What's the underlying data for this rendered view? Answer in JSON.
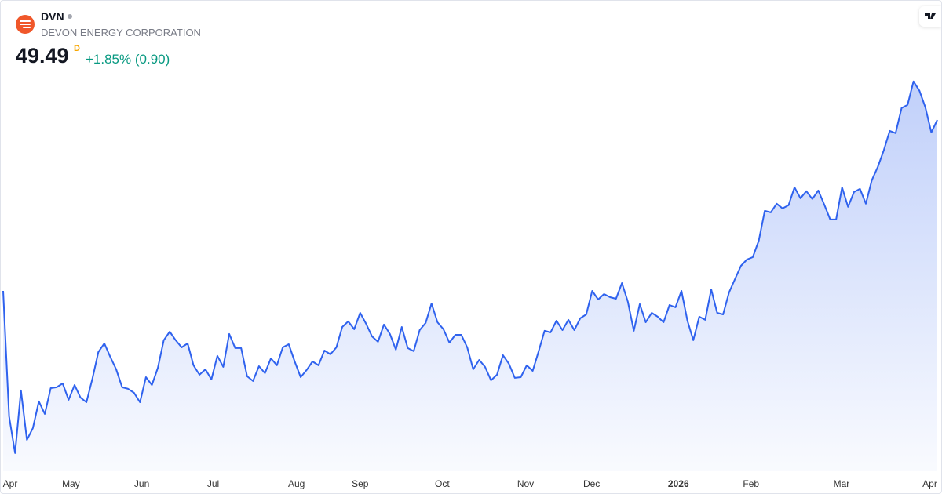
{
  "header": {
    "symbol": "DVN",
    "name": "DEVON ENERGY CORPORATION",
    "price": "49.49",
    "interval": "D",
    "change": "+1.85% (0.90)"
  },
  "chart_data": {
    "type": "area",
    "color": "#2f62ee",
    "values": [
      37.5,
      28.7,
      26.12,
      30.52,
      27.05,
      27.88,
      29.75,
      28.87,
      30.68,
      30.74,
      31.01,
      29.86,
      30.9,
      30.02,
      29.69,
      31.34,
      33.21,
      33.82,
      32.88,
      32.0,
      30.74,
      30.63,
      30.35,
      29.69,
      31.45,
      30.9,
      32.11,
      34.04,
      34.64,
      34.04,
      33.54,
      33.82,
      32.28,
      31.62,
      32.0,
      31.29,
      32.94,
      32.17,
      34.48,
      33.49,
      33.49,
      31.51,
      31.18,
      32.22,
      31.73,
      32.77,
      32.28,
      33.54,
      33.76,
      32.55,
      31.45,
      31.95,
      32.55,
      32.28,
      33.32,
      33.05,
      33.54,
      34.97,
      35.36,
      34.81,
      35.96,
      35.19,
      34.31,
      33.93,
      35.14,
      34.48,
      33.38,
      34.97,
      33.49,
      33.27,
      34.75,
      35.25,
      36.62,
      35.3,
      34.81,
      33.87,
      34.42,
      34.42,
      33.54,
      32.0,
      32.66,
      32.17,
      31.23,
      31.62,
      32.99,
      32.39,
      31.4,
      31.45,
      32.28,
      31.89,
      33.27,
      34.7,
      34.59,
      35.41,
      34.75,
      35.47,
      34.75,
      35.58,
      35.85,
      37.5,
      36.9,
      37.28,
      37.06,
      36.95,
      38.05,
      36.73,
      34.7,
      36.57,
      35.3,
      35.96,
      35.69,
      35.3,
      36.51,
      36.35,
      37.5,
      35.41,
      34.04,
      35.69,
      35.47,
      37.61,
      35.96,
      35.85,
      37.39,
      38.33,
      39.26,
      39.7,
      39.87,
      41.02,
      43.11,
      43.0,
      43.61,
      43.28,
      43.5,
      44.76,
      43.99,
      44.49,
      43.94,
      44.54,
      43.55,
      42.51,
      42.51,
      44.76,
      43.39,
      44.43,
      44.65,
      43.61,
      45.26,
      46.19,
      47.35,
      48.72,
      48.56,
      50.32,
      50.54,
      52.19,
      51.53,
      50.37,
      48.61,
      49.49
    ],
    "xlim": [
      0,
      157
    ],
    "xticks": [
      {
        "value": 1,
        "label": "Apr"
      },
      {
        "value": 11.4,
        "label": "May"
      },
      {
        "value": 23.3,
        "label": "Jun"
      },
      {
        "value": 35.3,
        "label": "Jul"
      },
      {
        "value": 49.3,
        "label": "Aug"
      },
      {
        "value": 60,
        "label": "Sep"
      },
      {
        "value": 73.8,
        "label": "Oct"
      },
      {
        "value": 87.8,
        "label": "Nov"
      },
      {
        "value": 98.9,
        "label": "Dec"
      },
      {
        "value": 113.5,
        "label": "2026"
      },
      {
        "value": 125.7,
        "label": "Feb"
      },
      {
        "value": 140.9,
        "label": "Mar"
      },
      {
        "value": 155.75,
        "label": "Apr"
      }
    ],
    "ylim": [
      24.85,
      52.62
    ]
  }
}
